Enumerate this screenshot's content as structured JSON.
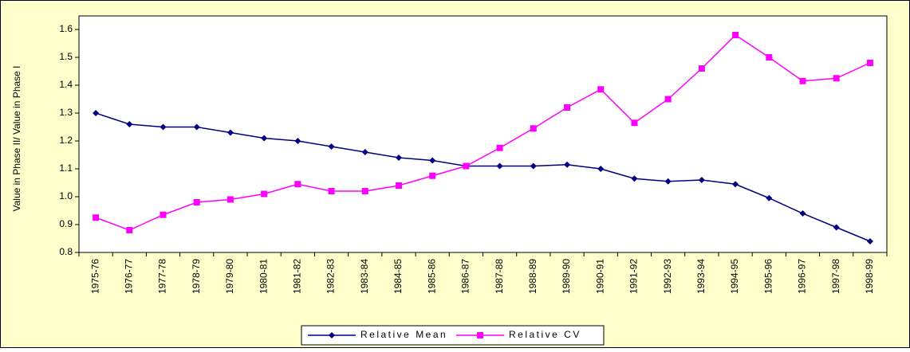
{
  "chart_data": {
    "type": "line",
    "y_label": "Value in Phase II/ Value in Phase I",
    "categories": [
      "1975-76",
      "1976-77",
      "1977-78",
      "1978-79",
      "1979-80",
      "1980-81",
      "1981-82",
      "1982-83",
      "1983-84",
      "1984-85",
      "1985-86",
      "1986-87",
      "1987-88",
      "1988-89",
      "1989-90",
      "1990-91",
      "1991-92",
      "1992-93",
      "1993-94",
      "1994-95",
      "1995-96",
      "1996-97",
      "1997-98",
      "1998-99"
    ],
    "series": [
      {
        "name": "Relative Mean",
        "color": "#000080",
        "marker": "diamond",
        "values": [
          1.3,
          1.26,
          1.25,
          1.25,
          1.23,
          1.21,
          1.2,
          1.18,
          1.16,
          1.14,
          1.13,
          1.11,
          1.11,
          1.11,
          1.115,
          1.1,
          1.065,
          1.055,
          1.06,
          1.045,
          0.995,
          0.94,
          0.89,
          0.84
        ]
      },
      {
        "name": "Relative CV",
        "color": "#FF00FF",
        "marker": "square",
        "values": [
          0.925,
          0.88,
          0.935,
          0.98,
          0.99,
          1.01,
          1.045,
          1.02,
          1.02,
          1.04,
          1.075,
          1.11,
          1.175,
          1.245,
          1.32,
          1.385,
          1.265,
          1.35,
          1.46,
          1.58,
          1.5,
          1.415,
          1.425,
          1.48
        ]
      }
    ],
    "ylim": [
      0.8,
      1.6
    ],
    "yticks": [
      0.8,
      0.9,
      {
        "value": 1,
        "label": "1.0"
      },
      1.1,
      1.2,
      1.3,
      1.4,
      1.5,
      1.6
    ],
    "legend": "bottom"
  }
}
